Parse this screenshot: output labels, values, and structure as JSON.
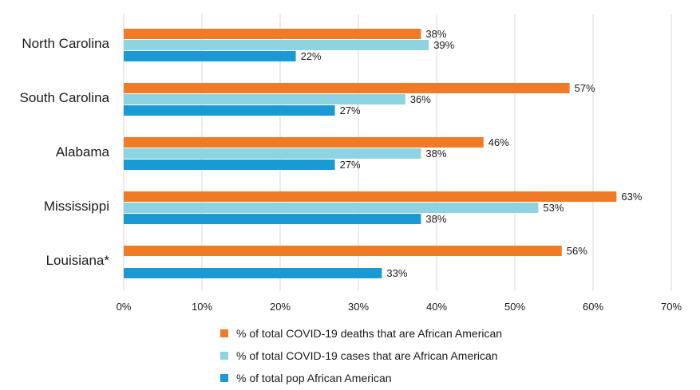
{
  "chart_data": {
    "type": "bar",
    "orientation": "horizontal",
    "categories": [
      "North Carolina",
      "South Carolina",
      "Alabama",
      "Mississippi",
      "Louisiana*"
    ],
    "series": [
      {
        "name": "% of total COVID-19 deaths that are African American",
        "color": "#F07B26",
        "values": [
          38,
          57,
          46,
          63,
          56
        ],
        "labels": [
          "38%",
          "57%",
          "46%",
          "63%",
          "56%"
        ]
      },
      {
        "name": "% of total COVID-19 cases that are African American",
        "color": "#8ED3E2",
        "values": [
          39,
          36,
          38,
          53,
          null
        ],
        "labels": [
          "39%",
          "36%",
          "38%",
          "53%",
          null
        ]
      },
      {
        "name": "% of total pop African American",
        "color": "#1A9AD5",
        "values": [
          22,
          27,
          27,
          38,
          33
        ],
        "labels": [
          "22%",
          "27%",
          "27%",
          "38%",
          "33%"
        ]
      }
    ],
    "xlim": [
      0,
      70
    ],
    "xticks": [
      0,
      10,
      20,
      30,
      40,
      50,
      60,
      70
    ],
    "xtick_labels": [
      "0%",
      "10%",
      "20%",
      "30%",
      "40%",
      "50%",
      "60%",
      "70%"
    ],
    "grid": "vertical",
    "legend_position": "bottom"
  }
}
